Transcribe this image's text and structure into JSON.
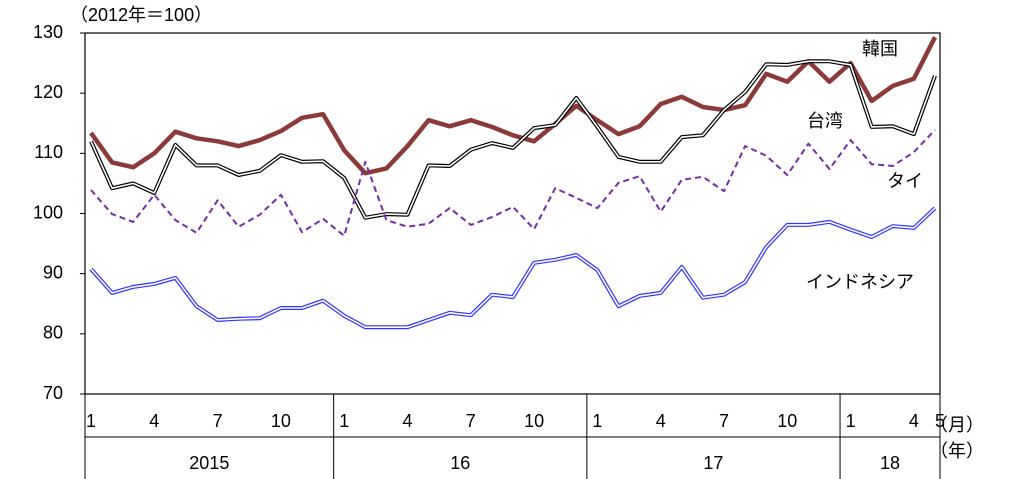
{
  "chart_data": {
    "type": "line",
    "y_unit_label": "（2012年＝100）",
    "x_unit_label": "（月）",
    "year_unit_label": "（年）",
    "categories": [
      "1",
      null,
      null,
      "4",
      null,
      null,
      "7",
      null,
      null,
      "10",
      null,
      null,
      "1",
      null,
      null,
      "4",
      null,
      null,
      "7",
      null,
      null,
      "10",
      null,
      null,
      "1",
      null,
      null,
      "4",
      null,
      null,
      "7",
      null,
      null,
      "10",
      null,
      null,
      "1",
      null,
      null,
      "4",
      "5"
    ],
    "years": [
      "2015",
      "16",
      "17",
      "18"
    ],
    "ylim": [
      70,
      130
    ],
    "yticks": [
      70,
      80,
      90,
      100,
      110,
      120,
      130
    ],
    "series": [
      {
        "name": "韓国",
        "color": "#8b3a3a",
        "style": "solid",
        "values": [
          113.4,
          108.5,
          107.7,
          110,
          113.6,
          112.5,
          112,
          111.2,
          112.2,
          113.7,
          115.9,
          116.5,
          110.5,
          106.7,
          107.5,
          111.2,
          115.5,
          114.5,
          115.5,
          114.4,
          113,
          112,
          114.9,
          117.9,
          115.5,
          113.2,
          114.5,
          118.2,
          119.4,
          117.7,
          117.2,
          118,
          123.2,
          121.9,
          125.3,
          121.9,
          125,
          118.7,
          121.2,
          122.4,
          129.3
        ]
      },
      {
        "name": "台湾",
        "color": "#000000",
        "style": "double",
        "values": [
          112,
          104.2,
          105,
          103.4,
          111.4,
          108,
          108,
          106.4,
          107.1,
          109.7,
          108.6,
          108.7,
          105.9,
          99.3,
          99.9,
          99.8,
          108,
          107.9,
          110.6,
          111.7,
          110.9,
          114.2,
          114.7,
          119.2,
          114.4,
          109.4,
          108.6,
          108.6,
          112.7,
          113,
          117.2,
          120.2,
          124.8,
          124.7,
          125.3,
          125.3,
          124.7,
          114.4,
          114.5,
          113.2,
          122.9
        ]
      },
      {
        "name": "タイ",
        "color": "#7030a0",
        "style": "dashed",
        "values": [
          103.9,
          99.9,
          98.6,
          103.1,
          98.9,
          96.8,
          102.2,
          97.8,
          99.8,
          103.1,
          96.9,
          99.1,
          96.3,
          108.6,
          98.9,
          97.8,
          98.3,
          100.9,
          98.1,
          99.4,
          101.1,
          97.4,
          104.2,
          102.6,
          100.9,
          105.1,
          106.2,
          100.3,
          105.6,
          106.1,
          103.7,
          111.2,
          109.6,
          106.4,
          111.6,
          107.4,
          112.2,
          108.2,
          107.9,
          110.2,
          113.9
        ]
      },
      {
        "name": "インドネシア",
        "color": "#3333ff",
        "style": "double",
        "values": [
          90.8,
          86.8,
          87.8,
          88.3,
          89.3,
          84.6,
          82.3,
          82.5,
          82.6,
          84.3,
          84.3,
          85.5,
          83,
          81.1,
          81.1,
          81.1,
          82.3,
          83.5,
          83.1,
          86.5,
          86.1,
          91.8,
          92.3,
          93.1,
          90.6,
          84.6,
          86.3,
          86.8,
          91.1,
          86,
          86.5,
          88.6,
          94.4,
          98.1,
          98.1,
          98.6,
          97.3,
          96.1,
          97.9,
          97.6,
          100.9
        ]
      }
    ]
  }
}
